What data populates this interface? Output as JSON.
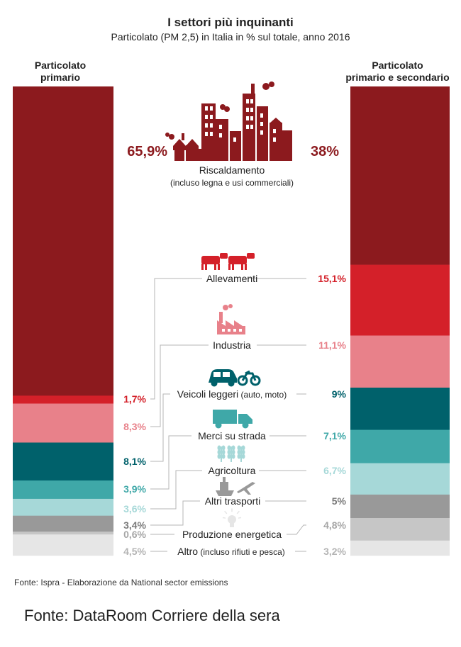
{
  "header": {
    "title": "I settori più inquinanti",
    "subtitle": "Particolato (PM 2,5) in Italia in % sul totale, anno 2016"
  },
  "chart_data": {
    "type": "bar",
    "stacked": true,
    "title": "I settori più inquinanti",
    "subtitle": "Particolato (PM 2,5) in Italia in % sul totale, anno 2016",
    "series": [
      {
        "name": "Particolato\nprimario",
        "values": [
          65.9,
          1.7,
          8.3,
          8.1,
          3.9,
          3.6,
          3.4,
          0.6,
          4.5
        ],
        "labels": [
          "65,9%",
          "1,7%",
          "8,3%",
          "8,1%",
          "3,9%",
          "3,6%",
          "3,4%",
          "0,6%",
          "4,5%"
        ]
      },
      {
        "name": "Particolato\nprimario e secondario",
        "values": [
          38,
          15.1,
          11.1,
          9,
          7.1,
          6.7,
          5,
          4.8,
          3.2
        ],
        "labels": [
          "38%",
          "15,1%",
          "11,1%",
          "9%",
          "7,1%",
          "6,7%",
          "5%",
          "4,8%",
          "3,2%"
        ]
      }
    ],
    "categories": [
      {
        "label": "Riscaldamento",
        "note": "(incluso legna e usi commerciali)",
        "color": "#8c1a1e"
      },
      {
        "label": "Allevamenti",
        "note": "",
        "color": "#d42029"
      },
      {
        "label": "Industria",
        "note": "",
        "color": "#e8818a"
      },
      {
        "label": "Veicoli leggeri",
        "note": "(auto, moto)",
        "color": "#00616b"
      },
      {
        "label": "Merci su strada",
        "note": "",
        "color": "#3fa8a8"
      },
      {
        "label": "Agricoltura",
        "note": "",
        "color": "#a6d8d8"
      },
      {
        "label": "Altri trasporti",
        "note": "",
        "color": "#999999"
      },
      {
        "label": "Produzione energetica",
        "note": "",
        "color": "#c6c6c6"
      },
      {
        "label": "Altro",
        "note": "(incluso rifiuti e pesca)",
        "color": "#e6e6e6"
      }
    ],
    "label_colors": [
      "#8c1a1e",
      "#d42029",
      "#e8818a",
      "#00616b",
      "#3fa8a8",
      "#a6d8d8",
      "#7a7a7a",
      "#a6a6a6",
      "#b4b4b4"
    ],
    "icons": [
      "city-factories-icon",
      "cows-icon",
      "factory-icon",
      "car-motorbike-icon",
      "truck-icon",
      "wheat-icon",
      "ship-plane-icon",
      "lightbulb-icon"
    ]
  },
  "footer": {
    "source": "Fonte: Ispra - Elaborazione da National sector emissions",
    "attribution": "Fonte: DataRoom Corriere della sera"
  }
}
